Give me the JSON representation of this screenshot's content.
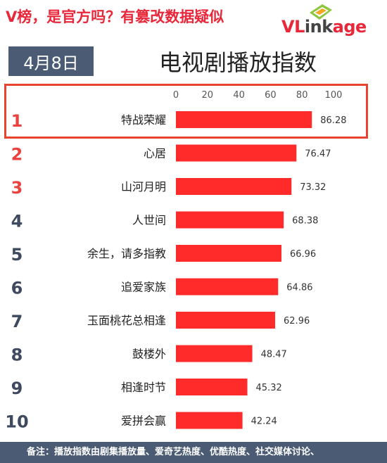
{
  "header": {
    "headline": "V榜，是官方吗？有篡改数据疑似",
    "logo": {
      "part1": "VL",
      "part2": "ink",
      "part3": "age",
      "mark_icon": "vlinkage-logo-mark-icon"
    },
    "date": "4月8日"
  },
  "chart_data": {
    "type": "bar",
    "orientation": "horizontal",
    "title": "电视剧播放指数",
    "xlim": [
      0,
      100
    ],
    "x_ticks": [
      0,
      20,
      40,
      60,
      80,
      100
    ],
    "tick_labels": [
      "0",
      "20",
      "40",
      "60",
      "80",
      "100"
    ],
    "ranks": [
      "1",
      "2",
      "3",
      "4",
      "5",
      "6",
      "7",
      "8",
      "9",
      "10"
    ],
    "categories": [
      "特战荣耀",
      "心居",
      "山河月明",
      "人世间",
      "余生，请多指教",
      "追爱家族",
      "玉面桃花总相逢",
      "鼓楼外",
      "相逢时节",
      "爱拼会赢"
    ],
    "values": [
      86.28,
      76.47,
      73.32,
      68.38,
      66.96,
      64.86,
      62.96,
      48.47,
      45.32,
      42.24
    ],
    "value_labels": [
      "86.28",
      "76.47",
      "73.32",
      "68.38",
      "66.96",
      "64.86",
      "62.96",
      "48.47",
      "45.32",
      "42.24"
    ],
    "grid": false,
    "legend": "none",
    "colors": {
      "bar": "#ff2a2a",
      "rank_top": "#e8433f",
      "rank_other": "#3e4a5e",
      "highlight_box": "#e8432e"
    }
  },
  "footnote": "备注：播放指数由剧集播放量、爱奇艺热度、优酷热度、社交媒体讨论、"
}
